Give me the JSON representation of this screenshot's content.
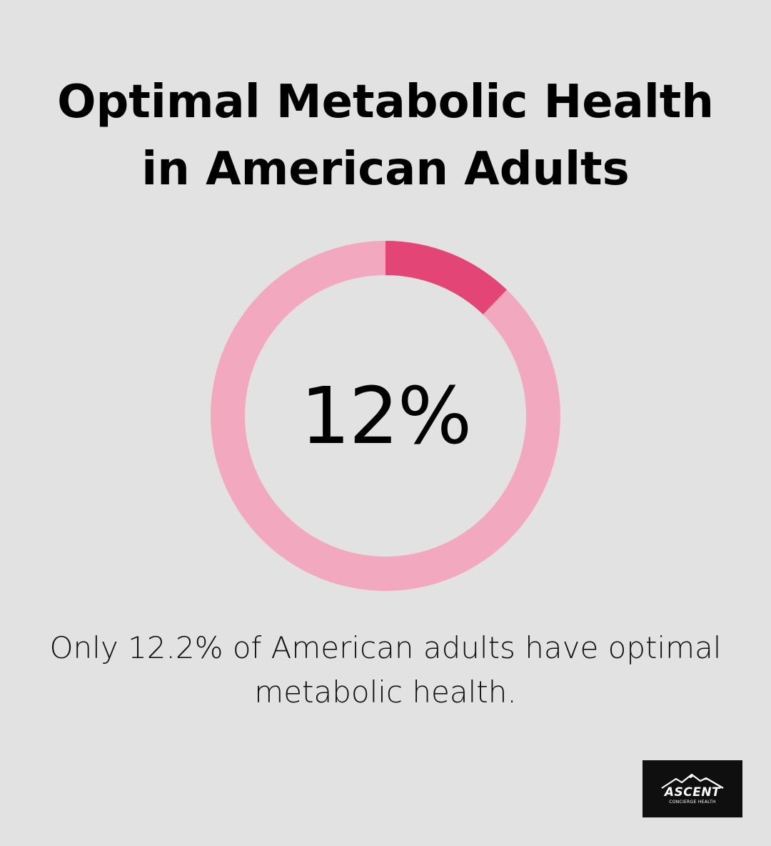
{
  "title": {
    "line1": "Optimal Metabolic Health",
    "line2": "in American Adults"
  },
  "chart_data": {
    "type": "pie",
    "variant": "donut",
    "categories": [
      "Optimal metabolic health",
      "Other"
    ],
    "values": [
      12.2,
      87.8
    ],
    "center_label": "12%",
    "colors": {
      "highlight": "#e44577",
      "remainder": "#f2a8bf"
    },
    "legend": "none"
  },
  "caption": {
    "line1": "Only 12.2% of American adults have optimal",
    "line2": "metabolic health."
  },
  "logo": {
    "name": "ASCENT",
    "tagline": "CONCIERGE HEALTH",
    "icon": "mountain-icon"
  },
  "colors": {
    "background": "#e1e2e1",
    "text": "#000000",
    "logo_bg": "#0f0f0f"
  }
}
